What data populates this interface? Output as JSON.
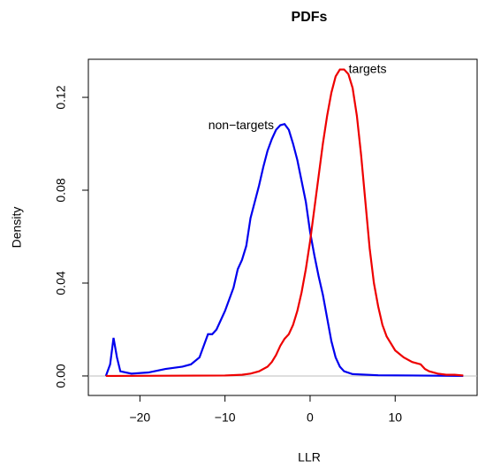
{
  "chart_data": {
    "type": "line",
    "title": "PDFs",
    "xlabel": "LLR",
    "ylabel": "Density",
    "xlim": [
      -26.06,
      19.63
    ],
    "ylim": [
      -0.0084,
      0.1364
    ],
    "xticks": [
      {
        "value": -20,
        "label": "−20"
      },
      {
        "value": -10,
        "label": "−10"
      },
      0,
      10
    ],
    "yticks": [
      {
        "value": 0,
        "label": "0.00"
      },
      0.04,
      0.08,
      0.12
    ],
    "zero_line": true,
    "series": [
      {
        "name": "non−targets",
        "color": "#0000ee",
        "x": [
          -24,
          -23.5,
          -23.1,
          -22.7,
          -22.3,
          -21,
          -19,
          -17,
          -15,
          -14,
          -13,
          -12.3,
          -12,
          -11.5,
          -11,
          -10,
          -9,
          -8.5,
          -8,
          -7.5,
          -7,
          -6.5,
          -6,
          -5.5,
          -5,
          -4.5,
          -4,
          -3.5,
          -3,
          -2.5,
          -2,
          -1.5,
          -1,
          -0.5,
          0,
          0.5,
          1,
          1.5,
          2,
          2.5,
          3,
          3.5,
          4,
          5,
          8,
          12,
          18
        ],
        "values": [
          0,
          0.005,
          0.0164,
          0.008,
          0.002,
          0.001,
          0.0015,
          0.003,
          0.004,
          0.005,
          0.008,
          0.015,
          0.018,
          0.018,
          0.02,
          0.028,
          0.038,
          0.046,
          0.05,
          0.056,
          0.068,
          0.075,
          0.082,
          0.09,
          0.097,
          0.102,
          0.106,
          0.108,
          0.1085,
          0.106,
          0.1,
          0.093,
          0.084,
          0.075,
          0.062,
          0.052,
          0.043,
          0.035,
          0.025,
          0.015,
          0.008,
          0.004,
          0.002,
          0.0008,
          0.0003,
          0.0002,
          0
        ]
      },
      {
        "name": "targets",
        "color": "#ee0000",
        "x": [
          -24,
          -10,
          -8,
          -7,
          -6,
          -5,
          -4.5,
          -4,
          -3.5,
          -3,
          -2.5,
          -2,
          -1.5,
          -1,
          -0.5,
          0,
          0.5,
          1,
          1.5,
          2,
          2.5,
          3,
          3.5,
          4,
          4.5,
          5,
          5.5,
          6,
          6.5,
          7,
          7.5,
          8,
          8.5,
          9,
          10,
          11,
          12,
          13,
          13.5,
          14,
          15,
          16,
          17,
          18
        ],
        "values": [
          0,
          0.0002,
          0.0005,
          0.001,
          0.002,
          0.004,
          0.006,
          0.009,
          0.013,
          0.016,
          0.018,
          0.022,
          0.028,
          0.036,
          0.046,
          0.058,
          0.072,
          0.086,
          0.1,
          0.112,
          0.122,
          0.129,
          0.132,
          0.132,
          0.13,
          0.124,
          0.112,
          0.095,
          0.075,
          0.055,
          0.04,
          0.03,
          0.022,
          0.017,
          0.011,
          0.008,
          0.006,
          0.005,
          0.003,
          0.002,
          0.001,
          0.0005,
          0.0005,
          0.0002
        ]
      }
    ]
  }
}
